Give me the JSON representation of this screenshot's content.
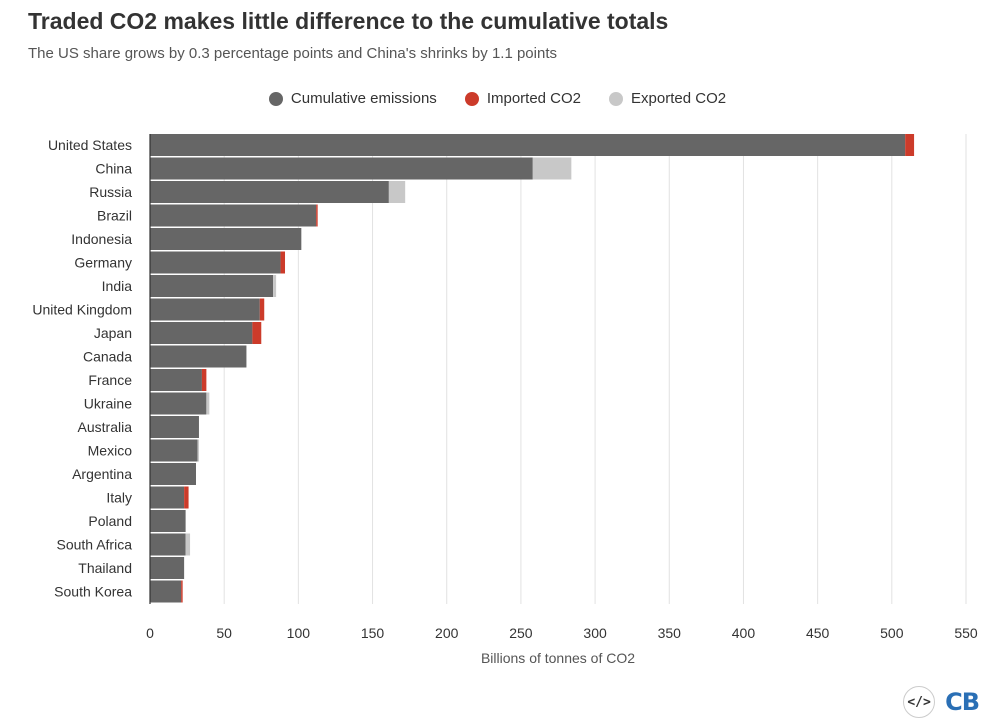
{
  "header": {
    "title": "Traded CO2 makes little difference to the cumulative totals",
    "subtitle": "The US share grows by 0.3 percentage points and China's shrinks by 1.1 points"
  },
  "legend": [
    {
      "label": "Cumulative emissions",
      "color": "#666666"
    },
    {
      "label": "Imported CO2",
      "color": "#cc3b2a"
    },
    {
      "label": "Exported CO2",
      "color": "#c8c8c8"
    }
  ],
  "chart_data": {
    "type": "bar",
    "orientation": "horizontal",
    "stacked": true,
    "title": "Traded CO2 makes little difference to the cumulative totals",
    "xlabel": "Billions of tonnes of CO2",
    "ylabel": "",
    "xlim": [
      0,
      550
    ],
    "xticks": [
      0,
      50,
      100,
      150,
      200,
      250,
      300,
      350,
      400,
      450,
      500,
      550
    ],
    "grid": "vertical",
    "legend_position": "top-center",
    "categories": [
      "United States",
      "China",
      "Russia",
      "Brazil",
      "Indonesia",
      "Germany",
      "India",
      "United Kingdom",
      "Japan",
      "Canada",
      "France",
      "Ukraine",
      "Australia",
      "Mexico",
      "Argentina",
      "Italy",
      "Poland",
      "South Africa",
      "Thailand",
      "South Korea"
    ],
    "series": [
      {
        "name": "Cumulative emissions",
        "values": [
          509,
          258,
          161,
          112,
          102,
          88,
          83,
          74,
          69,
          65,
          35,
          38,
          33,
          32,
          31,
          23,
          24,
          24,
          23,
          21
        ]
      },
      {
        "name": "Imported CO2",
        "values": [
          6,
          0,
          0,
          1,
          0,
          3,
          0,
          3,
          6,
          0,
          3,
          0,
          0,
          0,
          0,
          3,
          0,
          0,
          0,
          1
        ]
      },
      {
        "name": "Exported CO2",
        "values": [
          0,
          26,
          11,
          0,
          0,
          0,
          2,
          0,
          0,
          0,
          0,
          2,
          0,
          1,
          0,
          0,
          0,
          3,
          0,
          0
        ]
      }
    ]
  },
  "footer": {
    "embed_label": "</>",
    "logo_label": "CB"
  }
}
